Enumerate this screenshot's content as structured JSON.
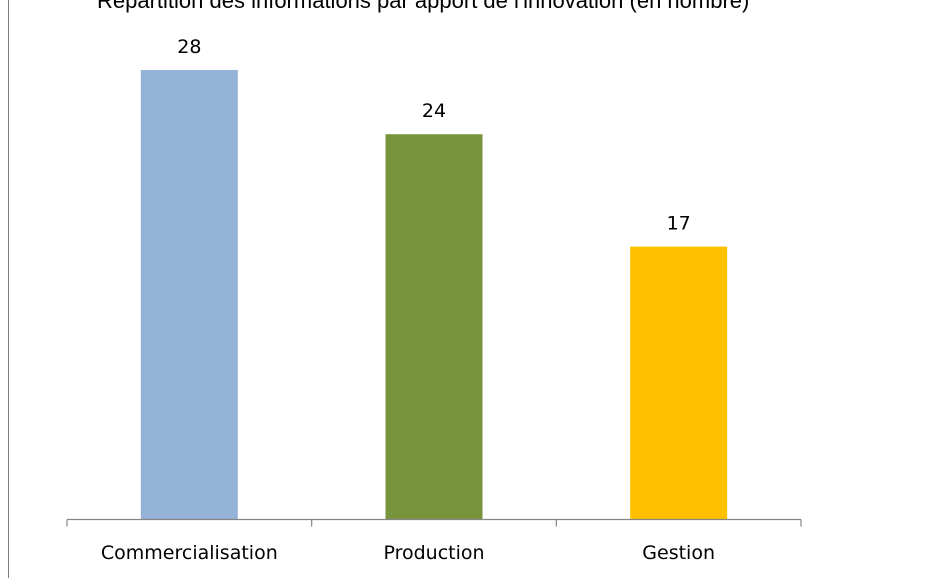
{
  "chart_data": {
    "type": "bar",
    "title": "Répartition des informations par apport de l'innovation (en nombre)",
    "categories": [
      "Commercialisation",
      "Production",
      "Gestion"
    ],
    "values": [
      28,
      24,
      17
    ],
    "colors": [
      "#95b3d7",
      "#77933c",
      "#ffc000"
    ],
    "xlabel": "",
    "ylabel": "",
    "ylim": [
      0,
      28
    ],
    "grid": false,
    "legend": "none"
  }
}
